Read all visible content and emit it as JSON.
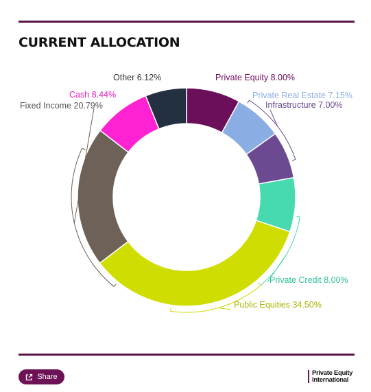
{
  "header": {
    "title": "CURRENT ALLOCATION"
  },
  "chart_data": {
    "type": "pie",
    "donut": true,
    "slices": [
      {
        "label": "Private Equity 8.00%",
        "value": 8.0,
        "color": "#6b0f5a",
        "label_color": "#6b0f5a"
      },
      {
        "label": "Private Real Estate 7.15%",
        "value": 7.15,
        "color": "#8aaee3",
        "label_color": "#8aaee3"
      },
      {
        "label": "Infrastructure 7.00%",
        "value": 7.0,
        "color": "#6c4a91",
        "label_color": "#6c4a91"
      },
      {
        "label": "Private Credit 8.00%",
        "value": 8.0,
        "color": "#47d9b0",
        "label_color": "#2fbf98"
      },
      {
        "label": "Public Equities 34.50%",
        "value": 34.5,
        "color": "#cfdd00",
        "label_color": "#a9b400"
      },
      {
        "label": "Fixed Income 20.79%",
        "value": 20.79,
        "color": "#6e6157",
        "label_color": "#555555"
      },
      {
        "label": "Cash 8.44%",
        "value": 8.44,
        "color": "#ff22d2",
        "label_color": "#e81cc0"
      },
      {
        "label": "Other 6.12%",
        "value": 6.12,
        "color": "#233041",
        "label_color": "#333333"
      }
    ]
  },
  "footer": {
    "share_label": "Share",
    "logo_line1": "Private Equity",
    "logo_line2": "International"
  }
}
